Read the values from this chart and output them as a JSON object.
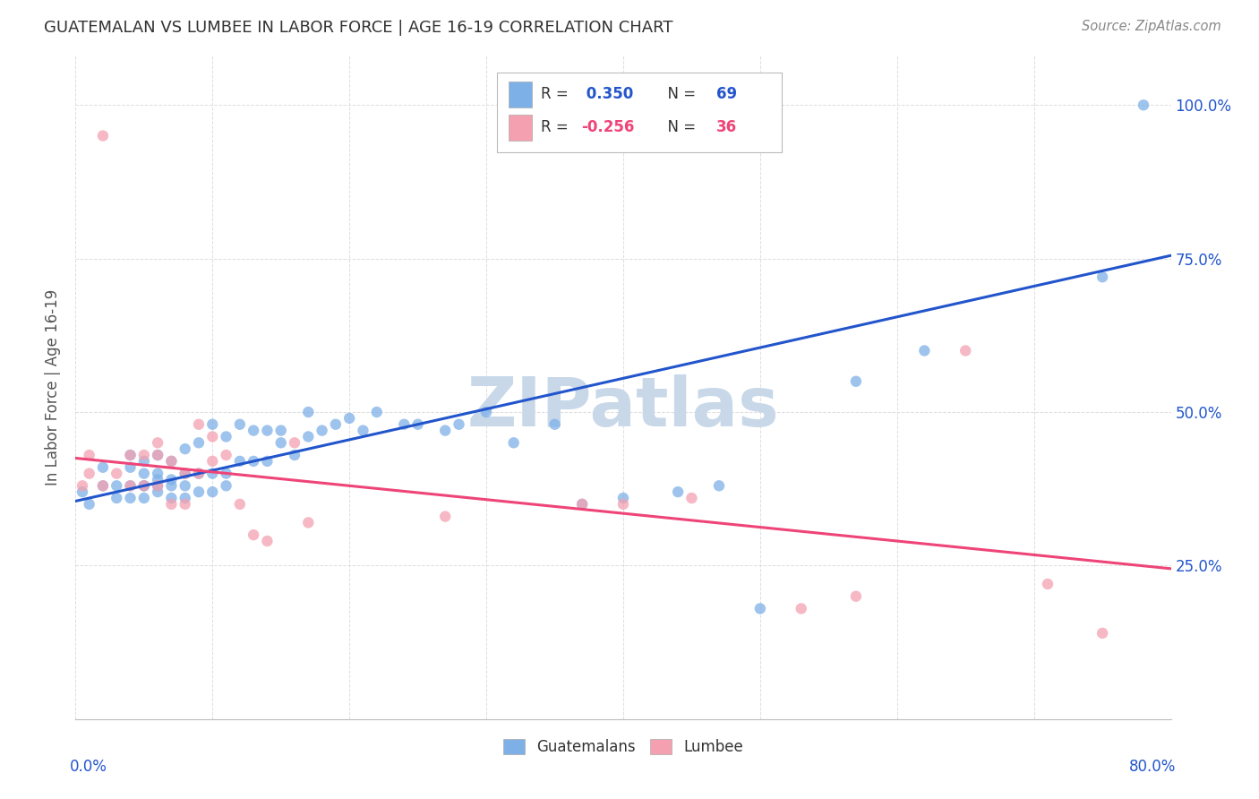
{
  "title": "GUATEMALAN VS LUMBEE IN LABOR FORCE | AGE 16-19 CORRELATION CHART",
  "source": "Source: ZipAtlas.com",
  "ylabel": "In Labor Force | Age 16-19",
  "xmin": 0.0,
  "xmax": 0.8,
  "ymin": 0.0,
  "ymax": 1.08,
  "yticks": [
    0.25,
    0.5,
    0.75,
    1.0
  ],
  "ytick_labels": [
    "25.0%",
    "50.0%",
    "75.0%",
    "100.0%"
  ],
  "blue_R": 0.35,
  "blue_N": 69,
  "pink_R": -0.256,
  "pink_N": 36,
  "blue_color": "#7EB0E8",
  "pink_color": "#F4A0B0",
  "blue_line_color": "#2255CC",
  "pink_line_color": "#EE4477",
  "watermark": "ZIPatlas",
  "watermark_color": "#C8D8E8",
  "legend_label_blue": "Guatemalans",
  "legend_label_pink": "Lumbee",
  "blue_line_x0": 0.0,
  "blue_line_y0": 0.355,
  "blue_line_x1": 0.8,
  "blue_line_y1": 0.755,
  "pink_line_x0": 0.0,
  "pink_line_y0": 0.425,
  "pink_line_x1": 0.8,
  "pink_line_y1": 0.245,
  "blue_dots_x": [
    0.005,
    0.01,
    0.02,
    0.02,
    0.03,
    0.03,
    0.04,
    0.04,
    0.04,
    0.04,
    0.05,
    0.05,
    0.05,
    0.05,
    0.05,
    0.06,
    0.06,
    0.06,
    0.06,
    0.06,
    0.07,
    0.07,
    0.07,
    0.07,
    0.08,
    0.08,
    0.08,
    0.08,
    0.09,
    0.09,
    0.09,
    0.1,
    0.1,
    0.1,
    0.11,
    0.11,
    0.11,
    0.12,
    0.12,
    0.13,
    0.13,
    0.14,
    0.14,
    0.15,
    0.15,
    0.16,
    0.17,
    0.17,
    0.18,
    0.19,
    0.2,
    0.21,
    0.22,
    0.24,
    0.25,
    0.27,
    0.28,
    0.3,
    0.32,
    0.35,
    0.37,
    0.4,
    0.44,
    0.47,
    0.5,
    0.57,
    0.62,
    0.75,
    0.78
  ],
  "blue_dots_y": [
    0.37,
    0.35,
    0.38,
    0.41,
    0.36,
    0.38,
    0.36,
    0.38,
    0.41,
    0.43,
    0.36,
    0.38,
    0.38,
    0.4,
    0.42,
    0.37,
    0.38,
    0.39,
    0.4,
    0.43,
    0.36,
    0.38,
    0.39,
    0.42,
    0.36,
    0.38,
    0.4,
    0.44,
    0.37,
    0.4,
    0.45,
    0.37,
    0.4,
    0.48,
    0.38,
    0.4,
    0.46,
    0.42,
    0.48,
    0.42,
    0.47,
    0.42,
    0.47,
    0.45,
    0.47,
    0.43,
    0.46,
    0.5,
    0.47,
    0.48,
    0.49,
    0.47,
    0.5,
    0.48,
    0.48,
    0.47,
    0.48,
    0.5,
    0.45,
    0.48,
    0.35,
    0.36,
    0.37,
    0.38,
    0.18,
    0.55,
    0.6,
    0.72,
    1.0
  ],
  "pink_dots_x": [
    0.005,
    0.01,
    0.01,
    0.02,
    0.02,
    0.03,
    0.04,
    0.04,
    0.05,
    0.05,
    0.06,
    0.06,
    0.06,
    0.07,
    0.07,
    0.08,
    0.08,
    0.09,
    0.09,
    0.1,
    0.1,
    0.11,
    0.12,
    0.13,
    0.14,
    0.16,
    0.17,
    0.27,
    0.37,
    0.4,
    0.45,
    0.53,
    0.57,
    0.65,
    0.71,
    0.75
  ],
  "pink_dots_y": [
    0.38,
    0.4,
    0.43,
    0.38,
    0.95,
    0.4,
    0.38,
    0.43,
    0.38,
    0.43,
    0.38,
    0.43,
    0.45,
    0.35,
    0.42,
    0.35,
    0.4,
    0.4,
    0.48,
    0.42,
    0.46,
    0.43,
    0.35,
    0.3,
    0.29,
    0.45,
    0.32,
    0.33,
    0.35,
    0.35,
    0.36,
    0.18,
    0.2,
    0.6,
    0.22,
    0.14
  ]
}
